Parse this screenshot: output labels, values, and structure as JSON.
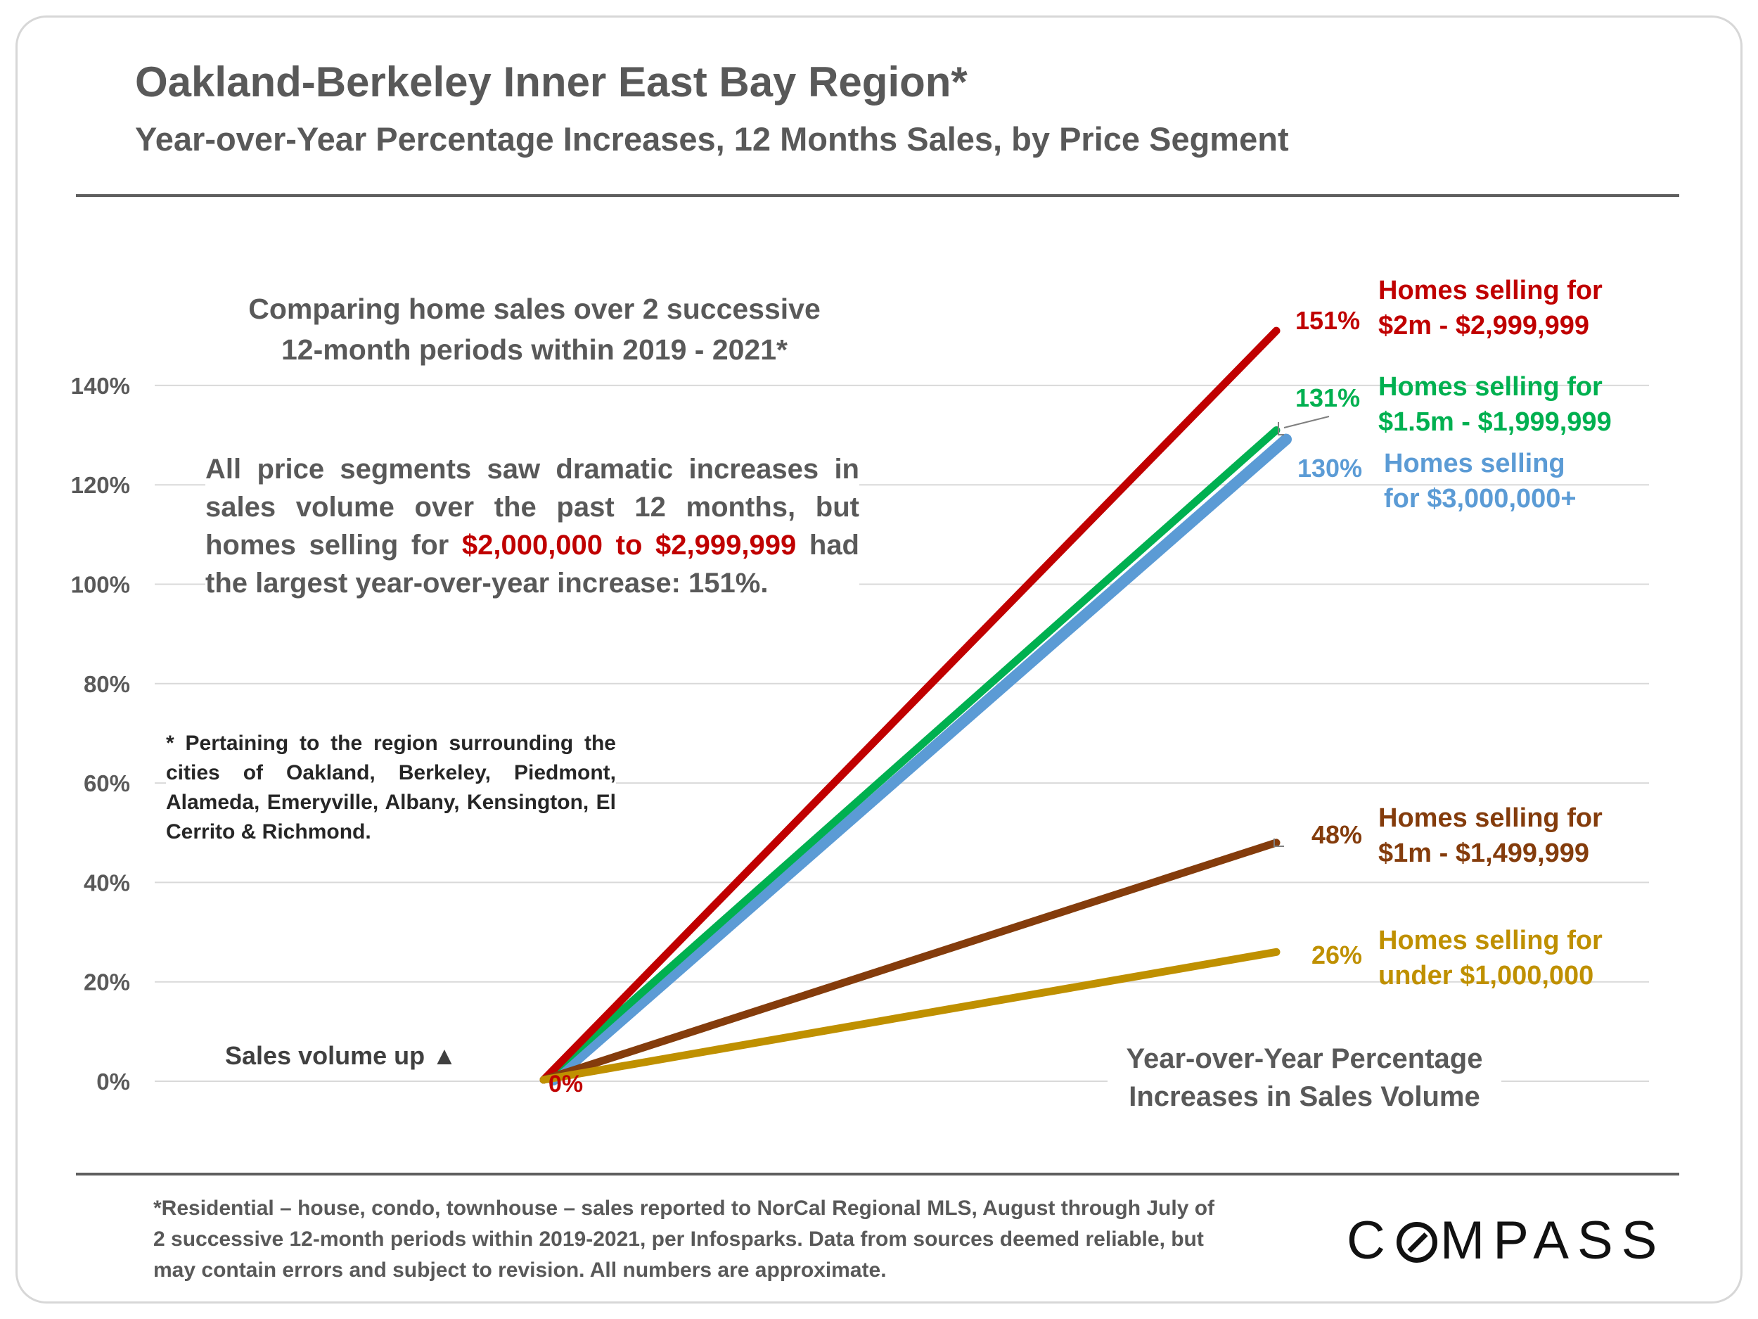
{
  "header": {
    "title": "Oakland-Berkeley Inner East Bay Region*",
    "subtitle": "Year-over-Year Percentage Increases, 12 Months Sales, by Price Segment"
  },
  "annotations": {
    "compare_line1": "Comparing home sales over 2 successive",
    "compare_line2": "12-month periods within 2019 - 2021*",
    "summary_pre": "All price segments saw dramatic increases in sales volume over the past 12 months, but homes selling for ",
    "summary_highlight": "$2,000,000 to $2,999,999",
    "summary_post": " had the largest year-over-year increase:  151%.",
    "region_note": "* Pertaining to the region surrounding the cities of Oakland, Berkeley, Piedmont, Alameda, Emeryville, Albany, Kensington, El Cerrito & Richmond.",
    "sales_volume_up": "Sales volume up ▲",
    "yoy_line1": "Year-over-Year Percentage",
    "yoy_line2": "Increases in Sales Volume"
  },
  "footer": {
    "footnote": "*Residential – house, condo, townhouse – sales reported to NorCal Regional MLS, August through July of 2 successive 12-month periods within 2019-2021, per Infosparks. Data from sources deemed reliable, but may contain errors and subject to revision. All numbers  are approximate.",
    "logo": "COMPASS"
  },
  "chart_data": {
    "type": "line",
    "title": "Year-over-Year Percentage Increases, 12 Months Sales, by Price Segment",
    "ylabel": "",
    "xlabel": "",
    "ylim": [
      0,
      150
    ],
    "yticks": [
      0,
      20,
      40,
      60,
      80,
      100,
      120,
      140
    ],
    "ytick_labels": [
      "0%",
      "20%",
      "40%",
      "60%",
      "80%",
      "100%",
      "120%",
      "140%"
    ],
    "grid": true,
    "start_label": "0%",
    "series": [
      {
        "name": "Homes selling for $3,000,000+",
        "label_lines": [
          "Homes selling",
          "for $3,000,000+"
        ],
        "color": "#5b9bd5",
        "start": 0,
        "end": 130,
        "end_label": "130%"
      },
      {
        "name": "Homes selling for $1.5m - $1,999,999",
        "label_lines": [
          "Homes selling for",
          "$1.5m - $1,999,999"
        ],
        "color": "#00b050",
        "start": 0,
        "end": 131,
        "end_label": "131%"
      },
      {
        "name": "Homes selling for $2m - $2,999,999",
        "label_lines": [
          "Homes selling for",
          "$2m - $2,999,999"
        ],
        "color": "#c00000",
        "start": 0,
        "end": 151,
        "end_label": "151%"
      },
      {
        "name": "Homes selling for $1m - $1,499,999",
        "label_lines": [
          "Homes selling for",
          "$1m - $1,499,999"
        ],
        "color": "#843c0c",
        "start": 0,
        "end": 48,
        "end_label": "48%"
      },
      {
        "name": "Homes selling for under $1,000,000",
        "label_lines": [
          "Homes selling for",
          "under $1,000,000"
        ],
        "color": "#bf9000",
        "start": 0,
        "end": 26,
        "end_label": "26%"
      }
    ]
  }
}
